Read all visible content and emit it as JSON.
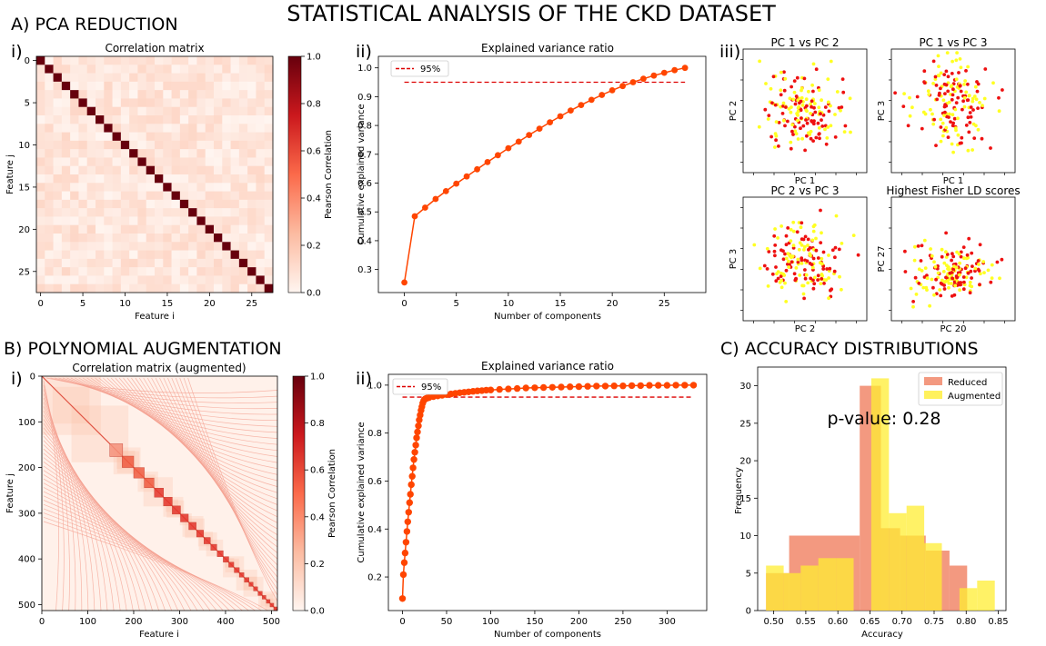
{
  "title": "STATISTICAL ANALYSIS OF THE CKD DATASET",
  "sections": {
    "a": "A) PCA REDUCTION",
    "b": "B) POLYNOMIAL AUGMENTATION",
    "c": "C) ACCURACY DISTRIBUTIONS"
  },
  "roman": {
    "a1": "i)",
    "a2": "ii)",
    "a3": "iii)",
    "b1": "i)",
    "b2": "ii)"
  },
  "corr_a": {
    "title": "Correlation matrix",
    "xlabel": "Feature i",
    "ylabel": "Feature j",
    "cbar_label": "Pearson Correlation",
    "n": 28,
    "ticks": [
      "0",
      "5",
      "10",
      "15",
      "20",
      "25"
    ],
    "cbar_ticks": [
      "0.0",
      "0.2",
      "0.4",
      "0.6",
      "0.8",
      "1.0"
    ]
  },
  "corr_b": {
    "title": "Correlation matrix (augmented)",
    "xlabel": "Feature i",
    "ylabel": "Feature j",
    "cbar_label": "Pearson Correlation",
    "n": 513,
    "ticks": [
      "0",
      "100",
      "200",
      "300",
      "400",
      "500"
    ],
    "cbar_ticks": [
      "0.0",
      "0.2",
      "0.4",
      "0.6",
      "0.8",
      "1.0"
    ]
  },
  "scatter_titles": [
    "PC 1 vs PC 2",
    "PC 1 vs PC 3",
    "PC 2 vs PC 3",
    "Highest Fisher LD scores"
  ],
  "scatter_xlabels": [
    "PC 1",
    "PC 1",
    "PC 2",
    "PC 20"
  ],
  "scatter_ylabels": [
    "PC 2",
    "PC 3",
    "PC 3",
    "PC 27"
  ],
  "colors": {
    "red_points": "#ee1111",
    "yellow_points": "#ffff22",
    "line": "#ff4500",
    "threshold": "#dd0000",
    "reduced": "#f08060",
    "augmented": "#ffee33"
  },
  "pvalue_text": "p-value: 0.28",
  "chart_data": [
    {
      "type": "line",
      "title": "Explained variance ratio",
      "xlabel": "Number of components",
      "ylabel": "Cumulative explained variance",
      "legend": [
        "95%"
      ],
      "threshold": 0.95,
      "xlim": [
        -2.5,
        29
      ],
      "ylim": [
        0.22,
        1.04
      ],
      "xticks": [
        0,
        5,
        10,
        15,
        20,
        25
      ],
      "yticks": [
        0.3,
        0.4,
        0.5,
        0.6,
        0.7,
        0.8,
        0.9,
        1.0
      ],
      "x": [
        0,
        1,
        2,
        3,
        4,
        5,
        6,
        7,
        8,
        9,
        10,
        11,
        12,
        13,
        14,
        15,
        16,
        17,
        18,
        19,
        20,
        21,
        22,
        23,
        24,
        25,
        26,
        27
      ],
      "y": [
        0.255,
        0.485,
        0.515,
        0.545,
        0.572,
        0.598,
        0.623,
        0.648,
        0.673,
        0.697,
        0.721,
        0.744,
        0.767,
        0.789,
        0.811,
        0.832,
        0.852,
        0.871,
        0.889,
        0.906,
        0.922,
        0.937,
        0.95,
        0.962,
        0.973,
        0.983,
        0.992,
        1.0
      ]
    },
    {
      "type": "line",
      "title": "Explained variance ratio",
      "xlabel": "Number of components",
      "ylabel": "Cumulative explained variance",
      "legend": [
        "95%"
      ],
      "threshold": 0.95,
      "xlim": [
        -16,
        345
      ],
      "ylim": [
        0.06,
        1.045
      ],
      "xticks": [
        0,
        50,
        100,
        150,
        200,
        250,
        300
      ],
      "yticks": [
        0.2,
        0.4,
        0.6,
        0.8,
        1.0
      ],
      "x": [
        0,
        1,
        2,
        3,
        4,
        5,
        6,
        7,
        8,
        9,
        10,
        11,
        12,
        13,
        14,
        15,
        16,
        17,
        18,
        19,
        20,
        21,
        22,
        23,
        24,
        25,
        26,
        27,
        28,
        30,
        35,
        40,
        45,
        50,
        55,
        60,
        65,
        70,
        75,
        80,
        85,
        90,
        95,
        100,
        110,
        120,
        130,
        140,
        150,
        160,
        170,
        180,
        190,
        200,
        210,
        220,
        230,
        240,
        250,
        260,
        270,
        280,
        290,
        300,
        310,
        320,
        330
      ],
      "y": [
        0.11,
        0.21,
        0.26,
        0.3,
        0.345,
        0.39,
        0.43,
        0.47,
        0.51,
        0.545,
        0.585,
        0.62,
        0.655,
        0.69,
        0.72,
        0.75,
        0.78,
        0.805,
        0.83,
        0.855,
        0.875,
        0.895,
        0.91,
        0.925,
        0.935,
        0.94,
        0.943,
        0.945,
        0.946,
        0.948,
        0.952,
        0.955,
        0.958,
        0.961,
        0.963,
        0.966,
        0.968,
        0.97,
        0.972,
        0.974,
        0.976,
        0.977,
        0.979,
        0.98,
        0.982,
        0.984,
        0.986,
        0.988,
        0.989,
        0.99,
        0.991,
        0.992,
        0.993,
        0.994,
        0.995,
        0.996,
        0.996,
        0.997,
        0.997,
        0.998,
        0.998,
        0.999,
        0.999,
        0.999,
        1.0,
        1.0,
        1.0
      ]
    },
    {
      "type": "bar",
      "subtype": "histogram",
      "xlabel": "Accuracy",
      "ylabel": "Frequency",
      "xlim": [
        0.475,
        0.862
      ],
      "ylim": [
        0,
        32.5
      ],
      "xticks": [
        0.5,
        0.55,
        0.6,
        0.65,
        0.7,
        0.75,
        0.8,
        0.85
      ],
      "yticks": [
        0,
        5,
        10,
        15,
        20,
        25,
        30
      ],
      "legend_position": "top-right",
      "series": [
        {
          "name": "Reduced",
          "bins": [
            0.488,
            0.524,
            0.565,
            0.634,
            0.667,
            0.697,
            0.737,
            0.774,
            0.8015
          ],
          "counts": [
            5,
            10,
            10,
            30,
            11,
            10,
            8,
            6
          ]
        },
        {
          "name": "Augmented",
          "bins": [
            0.488,
            0.5155,
            0.542,
            0.5695,
            0.597,
            0.6245,
            0.652,
            0.6795,
            0.707,
            0.7345,
            0.762,
            0.7895,
            0.817,
            0.8445
          ],
          "counts": [
            6,
            5,
            6,
            7,
            7,
            0,
            31,
            13,
            14,
            9,
            0,
            3,
            4
          ]
        }
      ]
    }
  ]
}
